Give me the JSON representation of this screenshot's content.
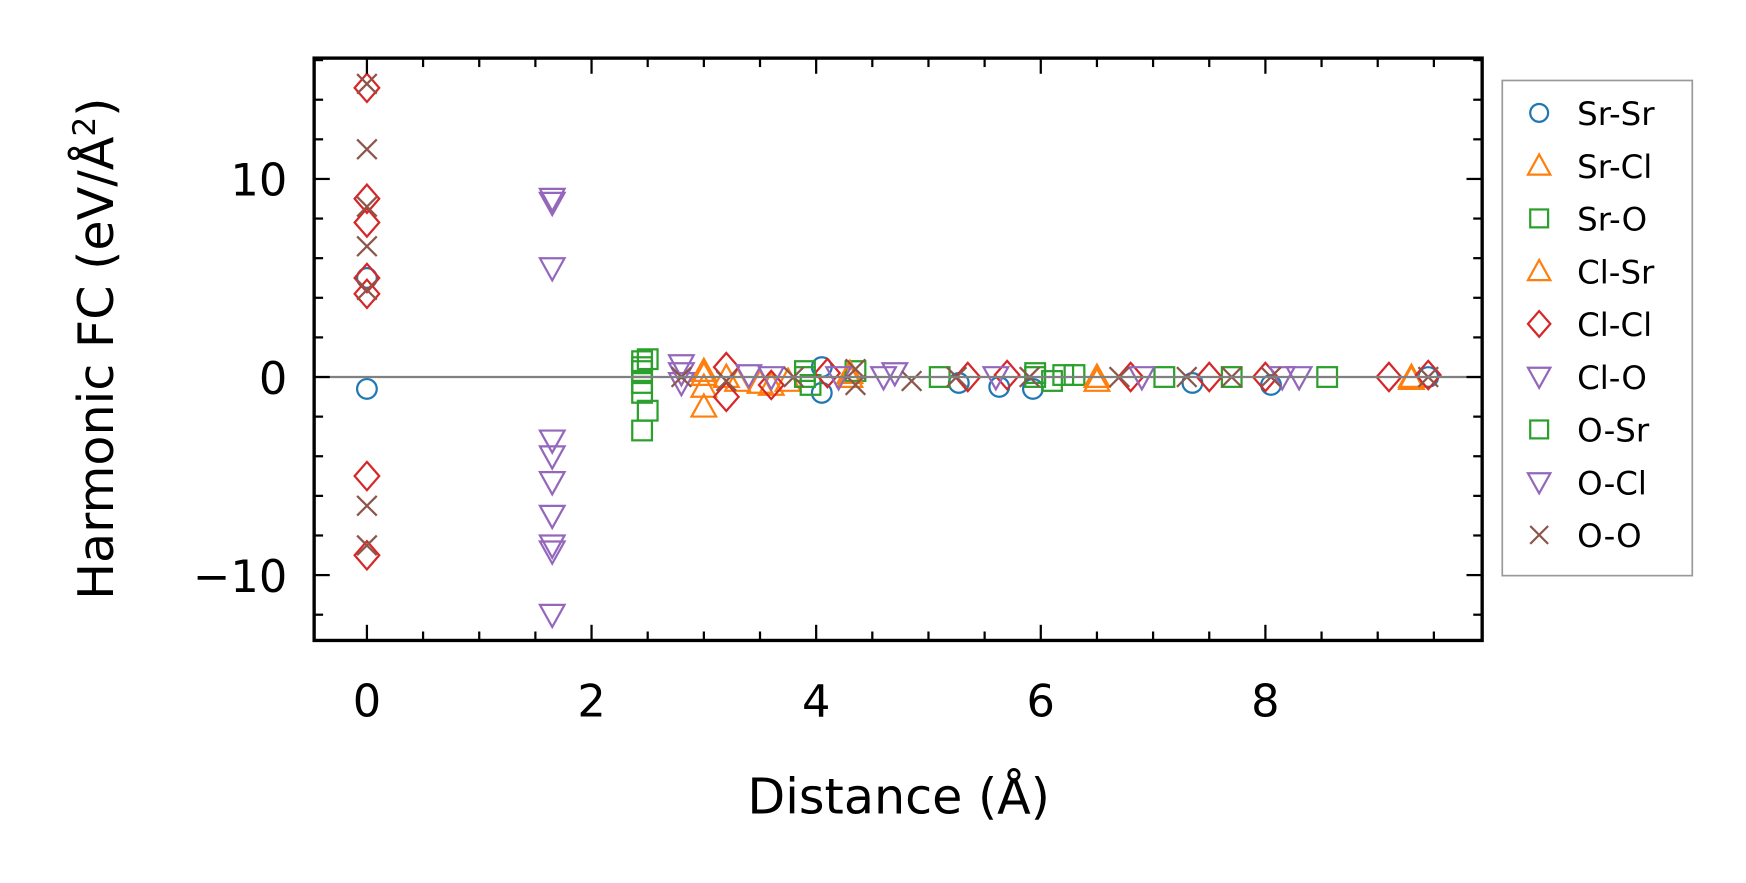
{
  "chart_data": {
    "type": "scatter",
    "title": "",
    "xlabel": "Distance (Å)",
    "ylabel": "Harmonic FC (eV/Å²)",
    "ylabel_main": "Harmonic FC (eV/Å",
    "ylabel_sup": "2",
    "ylabel_end": ")",
    "xlim": [
      -0.47,
      9.93
    ],
    "ylim": [
      -13.3,
      16.1
    ],
    "xticks": [
      0,
      2,
      4,
      6,
      8
    ],
    "xtick_labels": [
      "0",
      "2",
      "4",
      "6",
      "8"
    ],
    "yticks": [
      -10,
      0,
      10
    ],
    "ytick_labels": [
      "−10",
      "0",
      "10"
    ],
    "x_minor_step": 0.5,
    "y_minor_step": 2,
    "grid": false,
    "hline": 0,
    "legend_position": "outside-right",
    "series": [
      {
        "name": "Sr-Sr",
        "marker": "circle",
        "color": "#1f77b4",
        "points": [
          [
            0,
            5
          ],
          [
            0,
            -0.6
          ],
          [
            4.05,
            0.5
          ],
          [
            4.05,
            -0.8
          ],
          [
            5.27,
            -0.3
          ],
          [
            5.63,
            -0.5
          ],
          [
            5.93,
            -0.6
          ],
          [
            7.35,
            -0.3
          ],
          [
            8.05,
            -0.4
          ],
          [
            9.45,
            0
          ]
        ]
      },
      {
        "name": "Sr-Cl",
        "marker": "triangle-up",
        "color": "#ff7f0e",
        "points": [
          [
            3.0,
            0.3
          ],
          [
            3.0,
            -0.5
          ],
          [
            3.0,
            -1.5
          ],
          [
            3.2,
            0
          ],
          [
            3.5,
            -0.3
          ],
          [
            3.75,
            -0.2
          ],
          [
            4.3,
            0
          ],
          [
            6.5,
            -0.2
          ],
          [
            9.3,
            -0.1
          ]
        ]
      },
      {
        "name": "Sr-O",
        "marker": "square",
        "color": "#2ca02c",
        "points": [
          [
            2.45,
            0.8
          ],
          [
            2.45,
            0.3
          ],
          [
            2.45,
            -0.3
          ],
          [
            2.45,
            -0.8
          ],
          [
            2.45,
            -2.7
          ],
          [
            2.5,
            -1.7
          ],
          [
            2.5,
            0.9
          ],
          [
            3.9,
            0.3
          ],
          [
            3.95,
            -0.4
          ],
          [
            4.35,
            0.3
          ],
          [
            5.1,
            0
          ],
          [
            5.95,
            0.2
          ],
          [
            6.1,
            -0.2
          ],
          [
            6.3,
            0.1
          ],
          [
            7.1,
            0
          ],
          [
            7.7,
            0
          ],
          [
            8.55,
            0
          ]
        ]
      },
      {
        "name": "Cl-Sr",
        "marker": "triangle-up",
        "color": "#ff7f0e",
        "points": [
          [
            3.0,
            0.1
          ],
          [
            3.3,
            -0.2
          ],
          [
            3.6,
            -0.4
          ],
          [
            4.3,
            0.2
          ],
          [
            6.5,
            0
          ],
          [
            9.3,
            0
          ]
        ]
      },
      {
        "name": "Cl-Cl",
        "marker": "diamond",
        "color": "#d62728",
        "points": [
          [
            0,
            14.6
          ],
          [
            0,
            9
          ],
          [
            0,
            7.8
          ],
          [
            0,
            5
          ],
          [
            0,
            4.2
          ],
          [
            0,
            -5
          ],
          [
            0,
            -9
          ],
          [
            3.2,
            0.5
          ],
          [
            3.2,
            -1
          ],
          [
            3.6,
            -0.4
          ],
          [
            4.1,
            0.2
          ],
          [
            5.35,
            0
          ],
          [
            5.7,
            0.1
          ],
          [
            6.8,
            0
          ],
          [
            7.5,
            0
          ],
          [
            8.0,
            0
          ],
          [
            9.1,
            0
          ],
          [
            9.45,
            0.1
          ]
        ]
      },
      {
        "name": "Cl-O",
        "marker": "triangle-down",
        "color": "#9467bd",
        "points": [
          [
            1.65,
            8.8
          ],
          [
            1.65,
            5.5
          ],
          [
            1.65,
            -3.2
          ],
          [
            1.65,
            -4
          ],
          [
            1.65,
            -5.3
          ],
          [
            1.65,
            -7
          ],
          [
            1.65,
            -8.5
          ],
          [
            1.65,
            -12
          ],
          [
            2.8,
            0.6
          ],
          [
            2.8,
            -0.3
          ],
          [
            3.4,
            0.1
          ],
          [
            4.2,
            0
          ],
          [
            4.7,
            0.2
          ],
          [
            5.6,
            0
          ],
          [
            6.9,
            0
          ],
          [
            8.3,
            0
          ]
        ]
      },
      {
        "name": "O-Sr",
        "marker": "square",
        "color": "#2ca02c",
        "points": [
          [
            2.45,
            0.5
          ],
          [
            3.9,
            0
          ],
          [
            5.95,
            0
          ],
          [
            6.2,
            0.1
          ]
        ]
      },
      {
        "name": "O-Cl",
        "marker": "triangle-down",
        "color": "#9467bd",
        "points": [
          [
            1.65,
            9
          ],
          [
            1.65,
            -8.8
          ],
          [
            2.8,
            0.2
          ],
          [
            3.6,
            0
          ],
          [
            4.6,
            0
          ],
          [
            8.15,
            0
          ]
        ]
      },
      {
        "name": "O-O",
        "marker": "x",
        "color": "#8c564b",
        "points": [
          [
            0,
            14.8
          ],
          [
            0,
            11.5
          ],
          [
            0,
            8.6
          ],
          [
            0,
            6.6
          ],
          [
            0,
            4.4
          ],
          [
            0,
            -6.5
          ],
          [
            0,
            -8.5
          ],
          [
            2.8,
            0
          ],
          [
            3.2,
            -0.2
          ],
          [
            3.8,
            0
          ],
          [
            4.35,
            0.4
          ],
          [
            4.35,
            -0.4
          ],
          [
            4.85,
            -0.2
          ],
          [
            5.25,
            0
          ],
          [
            5.9,
            0
          ],
          [
            6.7,
            0
          ],
          [
            7.3,
            0
          ],
          [
            7.7,
            0
          ],
          [
            8.05,
            0
          ],
          [
            9.45,
            0
          ]
        ]
      }
    ]
  }
}
